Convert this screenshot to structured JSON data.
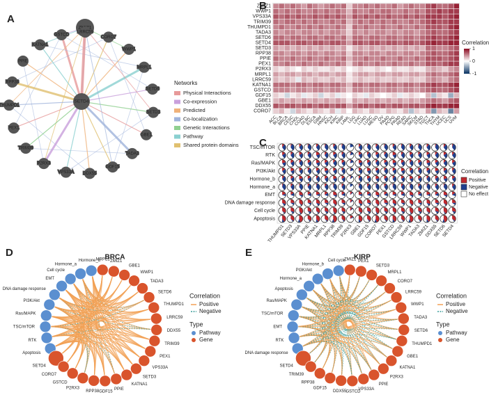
{
  "panel_a": {
    "label": "A",
    "hub_nodes": [
      "ZMIZ1",
      "SETD4"
    ],
    "nodes": [
      "GSTCD",
      "LRRC59",
      "CORO7",
      "WWP1",
      "MRPL1",
      "SETD6",
      "SETD3",
      "GBE1",
      "TADA3",
      "GDF15",
      "DDX55",
      "VPS33A",
      "P2RX3",
      "TRIM39",
      "PEX1",
      "THUMPD1",
      "RPP38",
      "PPIE",
      "KATNA1"
    ],
    "legend_title": "Networks",
    "legend": [
      {
        "label": "Physical Interactions",
        "color": "#e79a9a"
      },
      {
        "label": "Co-expression",
        "color": "#c9a0dc"
      },
      {
        "label": "Predicted",
        "color": "#f0b27a"
      },
      {
        "label": "Co-localization",
        "color": "#a0b4dc"
      },
      {
        "label": "Genetic Interactions",
        "color": "#90d090"
      },
      {
        "label": "Pathway",
        "color": "#8ad0d0"
      },
      {
        "label": "Shared protein domains",
        "color": "#e0c070"
      }
    ]
  },
  "panel_b": {
    "label": "B",
    "rows": [
      "ZMIZ1",
      "WWP1",
      "VPS33A",
      "TRIM39",
      "THUMPD1",
      "TADA3",
      "SETD6",
      "SETD4",
      "SETD3",
      "RPP38",
      "PPIE",
      "PEX1",
      "P2RX3",
      "MRPL1",
      "LRRC59",
      "KATNA1",
      "GSTCD",
      "GDF15",
      "GBE1",
      "DDX55",
      "CORO7"
    ],
    "columns": [
      "ACC",
      "BLCA",
      "BRCA",
      "CESC",
      "CHOL",
      "COAD",
      "DLBC",
      "ESCA",
      "GBM",
      "HNSC",
      "KICH",
      "KIRC",
      "KIRP",
      "LAML",
      "LGG",
      "LIHC",
      "LUAD",
      "LUSC",
      "MESO",
      "OV",
      "PAAD",
      "PCPG",
      "PRAD",
      "READ",
      "SARC",
      "SKCM",
      "STAD",
      "TGCT",
      "THCA",
      "THYM",
      "UCEC",
      "UCS",
      "UVM"
    ],
    "values": [
      [
        0.5,
        0.6,
        0.5,
        0.6,
        0.5,
        0.4,
        0.6,
        0.5,
        0.4,
        0.5,
        0.6,
        0.5,
        0.6,
        0.2,
        0.5,
        0.5,
        0.6,
        0.5,
        0.6,
        0.5,
        0.5,
        0.6,
        0.4,
        0.5,
        0.6,
        0.5,
        0.5,
        0.7,
        0.8,
        0.6,
        0.6,
        0.7,
        0.9
      ],
      [
        0.6,
        0.5,
        0.6,
        0.5,
        0.6,
        0.5,
        0.5,
        0.6,
        0.5,
        0.6,
        0.5,
        0.6,
        0.5,
        0.3,
        0.6,
        0.5,
        0.5,
        0.6,
        0.5,
        0.6,
        0.6,
        0.5,
        0.5,
        0.6,
        0.5,
        0.6,
        0.5,
        0.7,
        0.7,
        0.8,
        0.7,
        0.8,
        0.8
      ],
      [
        0.7,
        0.6,
        0.7,
        0.6,
        0.7,
        0.6,
        0.6,
        0.7,
        0.6,
        0.7,
        0.6,
        0.7,
        0.6,
        0.4,
        0.7,
        0.6,
        0.7,
        0.6,
        0.7,
        0.6,
        0.7,
        0.6,
        0.6,
        0.7,
        0.6,
        0.7,
        0.6,
        0.8,
        0.8,
        0.8,
        0.7,
        0.8,
        0.9
      ],
      [
        0.6,
        0.5,
        0.6,
        0.6,
        0.5,
        0.6,
        0.5,
        0.6,
        0.5,
        0.5,
        0.6,
        0.5,
        0.6,
        0.3,
        0.5,
        0.6,
        0.5,
        0.6,
        0.5,
        0.6,
        0.5,
        0.6,
        0.5,
        0.5,
        0.6,
        0.5,
        0.6,
        0.7,
        0.8,
        0.7,
        0.7,
        0.8,
        0.8
      ],
      [
        0.5,
        0.6,
        0.5,
        0.5,
        0.6,
        0.5,
        0.6,
        0.5,
        0.6,
        0.5,
        0.5,
        0.6,
        0.5,
        0.2,
        0.6,
        0.5,
        0.6,
        0.5,
        0.5,
        0.6,
        0.5,
        0.5,
        0.6,
        0.5,
        0.5,
        0.6,
        0.5,
        0.7,
        0.7,
        0.7,
        0.6,
        0.8,
        0.9
      ],
      [
        0.5,
        0.4,
        0.5,
        0.5,
        0.4,
        0.5,
        0.5,
        0.4,
        0.5,
        0.4,
        0.5,
        0.5,
        0.4,
        0.2,
        0.5,
        0.4,
        0.5,
        0.4,
        0.5,
        0.5,
        0.4,
        0.5,
        0.4,
        0.5,
        0.5,
        0.4,
        0.5,
        0.6,
        0.7,
        0.6,
        0.6,
        0.7,
        0.8
      ],
      [
        0.6,
        0.6,
        0.5,
        0.6,
        0.6,
        0.5,
        0.6,
        0.6,
        0.5,
        0.6,
        0.6,
        0.5,
        0.6,
        0.3,
        0.6,
        0.6,
        0.5,
        0.6,
        0.6,
        0.5,
        0.6,
        0.6,
        0.5,
        0.6,
        0.6,
        0.5,
        0.6,
        0.7,
        0.8,
        0.7,
        0.7,
        0.8,
        0.9
      ],
      [
        0.7,
        0.7,
        0.7,
        0.6,
        0.7,
        0.7,
        0.6,
        0.7,
        0.7,
        0.6,
        0.7,
        0.7,
        0.6,
        0.4,
        0.7,
        0.7,
        0.6,
        0.7,
        0.7,
        0.6,
        0.7,
        0.7,
        0.6,
        0.7,
        0.7,
        0.6,
        0.7,
        0.8,
        0.9,
        0.8,
        0.8,
        0.9,
        0.9
      ],
      [
        0.4,
        0.3,
        0.4,
        0.3,
        0.4,
        0.3,
        0.4,
        0.3,
        0.4,
        0.3,
        0.4,
        0.3,
        0.4,
        0.1,
        0.3,
        0.4,
        0.3,
        0.4,
        0.3,
        0.4,
        0.3,
        0.4,
        0.3,
        0.4,
        0.3,
        0.4,
        0.3,
        0.6,
        0.6,
        0.5,
        0.5,
        0.6,
        0.7
      ],
      [
        0.5,
        0.5,
        0.4,
        0.5,
        0.5,
        0.4,
        0.5,
        0.5,
        0.4,
        0.5,
        0.5,
        0.4,
        0.5,
        0.2,
        0.5,
        0.5,
        0.4,
        0.5,
        0.5,
        0.4,
        0.5,
        0.5,
        0.4,
        0.5,
        0.5,
        0.4,
        0.5,
        0.6,
        0.7,
        0.6,
        0.6,
        0.7,
        0.8
      ],
      [
        0.6,
        0.5,
        0.5,
        0.6,
        0.5,
        0.5,
        0.6,
        0.5,
        0.5,
        0.6,
        0.5,
        0.5,
        0.6,
        0.3,
        0.5,
        0.5,
        0.6,
        0.5,
        0.5,
        0.6,
        0.5,
        0.5,
        0.6,
        0.5,
        0.5,
        0.6,
        0.5,
        0.7,
        0.7,
        0.7,
        0.6,
        0.7,
        0.8
      ],
      [
        0.5,
        0.5,
        0.6,
        0.5,
        0.5,
        0.6,
        0.5,
        0.5,
        0.6,
        0.5,
        0.5,
        0.6,
        0.5,
        0.2,
        0.5,
        0.6,
        0.5,
        0.5,
        0.6,
        0.5,
        0.5,
        0.6,
        0.5,
        0.5,
        0.6,
        0.5,
        0.5,
        0.7,
        0.7,
        0.6,
        0.7,
        0.8,
        0.8
      ],
      [
        0.2,
        0.1,
        0.2,
        0.1,
        0.0,
        0.2,
        0.1,
        0.2,
        0.1,
        0.1,
        0.2,
        0.1,
        0.2,
        0.0,
        0.1,
        0.2,
        0.1,
        0.1,
        0.2,
        0.1,
        0.0,
        0.2,
        0.1,
        0.1,
        0.2,
        0.1,
        0.1,
        0.3,
        0.4,
        0.3,
        0.2,
        0.4,
        0.5
      ],
      [
        0.4,
        0.3,
        0.4,
        0.4,
        0.3,
        0.4,
        0.4,
        0.3,
        0.4,
        0.4,
        0.3,
        0.4,
        0.4,
        0.1,
        0.3,
        0.4,
        0.4,
        0.3,
        0.4,
        0.4,
        0.3,
        0.4,
        0.4,
        0.3,
        0.4,
        0.4,
        0.3,
        0.5,
        0.6,
        0.5,
        0.5,
        0.6,
        0.7
      ],
      [
        0.3,
        0.2,
        0.3,
        0.2,
        -0.1,
        0.3,
        0.2,
        0.3,
        0.2,
        0.2,
        0.3,
        0.2,
        0.3,
        0.1,
        0.2,
        0.3,
        0.2,
        0.2,
        0.3,
        0.2,
        0.2,
        0.3,
        0.2,
        0.2,
        0.3,
        0.2,
        0.2,
        0.4,
        0.5,
        0.4,
        0.3,
        0.5,
        0.6
      ],
      [
        0.6,
        0.6,
        0.6,
        0.5,
        0.6,
        0.6,
        0.5,
        0.6,
        0.6,
        0.5,
        0.6,
        0.6,
        0.5,
        0.3,
        0.6,
        0.6,
        0.5,
        0.6,
        0.6,
        0.5,
        0.6,
        0.6,
        0.5,
        0.6,
        0.6,
        0.5,
        0.6,
        0.7,
        0.8,
        0.7,
        0.7,
        0.8,
        0.9
      ],
      [
        0.5,
        0.5,
        0.5,
        0.4,
        0.5,
        0.5,
        0.4,
        0.5,
        0.5,
        0.4,
        0.5,
        0.5,
        0.4,
        0.2,
        0.5,
        0.5,
        0.4,
        0.5,
        0.5,
        0.4,
        0.5,
        0.5,
        0.4,
        0.5,
        0.5,
        0.4,
        0.5,
        0.6,
        0.7,
        0.6,
        0.6,
        0.7,
        0.8
      ],
      [
        0.2,
        0.1,
        -0.2,
        0.1,
        0.2,
        -0.1,
        0.1,
        0.2,
        -0.2,
        0.1,
        0.2,
        -0.1,
        0.1,
        0.0,
        0.2,
        0.1,
        -0.1,
        0.2,
        0.1,
        0.0,
        0.1,
        0.2,
        -0.1,
        0.1,
        0.2,
        0.1,
        0.0,
        0.3,
        -0.3,
        0.2,
        0.1,
        -0.4,
        0.3
      ],
      [
        0.3,
        0.4,
        0.3,
        0.4,
        0.3,
        0.4,
        0.3,
        0.4,
        0.3,
        0.4,
        0.3,
        0.4,
        0.3,
        0.1,
        0.4,
        0.3,
        0.4,
        0.3,
        0.4,
        0.3,
        0.4,
        0.3,
        0.4,
        0.3,
        0.4,
        0.3,
        0.4,
        0.5,
        0.6,
        0.5,
        0.4,
        0.6,
        0.7
      ],
      [
        0.7,
        0.6,
        0.7,
        0.7,
        0.6,
        0.7,
        0.7,
        0.6,
        0.7,
        0.7,
        0.6,
        0.7,
        0.7,
        0.4,
        0.6,
        0.7,
        0.7,
        0.6,
        0.7,
        0.7,
        0.6,
        0.7,
        0.7,
        0.6,
        0.7,
        0.7,
        0.6,
        0.8,
        0.9,
        0.8,
        0.8,
        0.9,
        0.9
      ],
      [
        0.2,
        0.3,
        0.1,
        -0.2,
        0.3,
        0.2,
        0.1,
        0.3,
        0.2,
        0.1,
        0.3,
        -0.1,
        0.2,
        0.0,
        0.3,
        0.2,
        0.1,
        0.3,
        0.2,
        0.1,
        0.3,
        0.2,
        0.1,
        0.3,
        -0.3,
        0.2,
        0.1,
        0.4,
        -0.5,
        0.3,
        0.2,
        -0.6,
        0.4
      ]
    ],
    "colorbar_title": "Correlation",
    "colorbar_ticks": [
      1,
      0,
      -1
    ],
    "colors": [
      "#053061",
      "#ffffff",
      "#8b0a20"
    ]
  },
  "panel_c": {
    "label": "C",
    "rows": [
      "TSC/mTOR",
      "RTK",
      "Ras/MAPK",
      "PI3K/Akt",
      "Hormone_b",
      "Hormone_a",
      "EMT",
      "DNA damage response",
      "Cell cycle",
      "Apoptosis"
    ],
    "columns": [
      "THUMPD1",
      "SETD3",
      "VPS33A",
      "PPIE",
      "KATNA1",
      "MRPL1",
      "RPP38",
      "TRIM39",
      "P2RX3",
      "GBE1",
      "GDF15",
      "CORO7",
      "PEX1",
      "GSTCD",
      "LRRC59",
      "WWP1",
      "TADA3",
      "ZMIZ1",
      "DDX55",
      "SETD6",
      "SETD4"
    ],
    "positive": [
      [
        10,
        5,
        10,
        5,
        10,
        5,
        10,
        5,
        0,
        10,
        5,
        10,
        5,
        10,
        5,
        10,
        5,
        10,
        5,
        10,
        5
      ],
      [
        15,
        10,
        15,
        10,
        20,
        10,
        15,
        10,
        5,
        15,
        10,
        15,
        10,
        20,
        10,
        15,
        10,
        15,
        10,
        15,
        10
      ],
      [
        20,
        15,
        10,
        15,
        20,
        15,
        10,
        15,
        5,
        20,
        15,
        10,
        15,
        20,
        15,
        10,
        15,
        20,
        15,
        10,
        15
      ],
      [
        15,
        20,
        15,
        10,
        15,
        20,
        15,
        10,
        5,
        15,
        20,
        15,
        10,
        15,
        20,
        15,
        10,
        15,
        20,
        15,
        10
      ],
      [
        10,
        15,
        20,
        15,
        10,
        15,
        20,
        15,
        5,
        10,
        15,
        20,
        15,
        10,
        15,
        20,
        15,
        10,
        15,
        20,
        15
      ],
      [
        5,
        10,
        5,
        10,
        5,
        10,
        5,
        10,
        0,
        5,
        10,
        5,
        10,
        5,
        10,
        5,
        10,
        5,
        10,
        5,
        10
      ],
      [
        20,
        15,
        25,
        15,
        20,
        15,
        25,
        15,
        10,
        20,
        15,
        25,
        15,
        20,
        15,
        25,
        15,
        20,
        15,
        25,
        15
      ],
      [
        30,
        25,
        35,
        25,
        30,
        25,
        35,
        25,
        10,
        30,
        25,
        35,
        25,
        30,
        25,
        35,
        25,
        30,
        25,
        35,
        25
      ],
      [
        35,
        30,
        40,
        30,
        35,
        30,
        40,
        30,
        10,
        35,
        30,
        40,
        30,
        35,
        30,
        40,
        30,
        35,
        30,
        40,
        30
      ],
      [
        40,
        35,
        45,
        35,
        40,
        35,
        45,
        35,
        15,
        40,
        35,
        45,
        35,
        40,
        35,
        45,
        35,
        40,
        35,
        45,
        35
      ]
    ],
    "negative": [
      [
        30,
        35,
        30,
        35,
        30,
        35,
        30,
        35,
        20,
        30,
        35,
        30,
        35,
        30,
        35,
        30,
        35,
        30,
        35,
        30,
        35
      ],
      [
        25,
        30,
        25,
        30,
        20,
        30,
        25,
        30,
        15,
        25,
        30,
        25,
        30,
        20,
        30,
        25,
        30,
        25,
        30,
        25,
        30
      ],
      [
        20,
        25,
        30,
        25,
        20,
        25,
        30,
        25,
        15,
        20,
        25,
        30,
        25,
        20,
        25,
        30,
        25,
        20,
        25,
        30,
        25
      ],
      [
        25,
        20,
        25,
        30,
        25,
        20,
        25,
        30,
        15,
        25,
        20,
        25,
        30,
        25,
        20,
        25,
        30,
        25,
        20,
        25,
        30
      ],
      [
        30,
        25,
        20,
        25,
        30,
        25,
        20,
        25,
        10,
        30,
        25,
        20,
        25,
        30,
        25,
        20,
        25,
        30,
        25,
        20,
        25
      ],
      [
        35,
        30,
        35,
        30,
        35,
        30,
        35,
        30,
        15,
        35,
        30,
        35,
        30,
        35,
        30,
        35,
        30,
        35,
        30,
        35,
        30
      ],
      [
        10,
        15,
        10,
        15,
        10,
        15,
        10,
        15,
        5,
        10,
        15,
        10,
        15,
        10,
        15,
        10,
        15,
        10,
        15,
        10,
        15
      ],
      [
        10,
        10,
        5,
        10,
        10,
        10,
        5,
        10,
        5,
        10,
        10,
        5,
        10,
        10,
        10,
        5,
        10,
        10,
        10,
        5,
        10
      ],
      [
        5,
        10,
        5,
        10,
        5,
        10,
        5,
        10,
        5,
        5,
        10,
        5,
        10,
        5,
        10,
        5,
        10,
        5,
        10,
        5,
        10
      ],
      [
        10,
        5,
        10,
        5,
        10,
        5,
        10,
        5,
        5,
        10,
        5,
        10,
        5,
        10,
        5,
        10,
        5,
        10,
        5,
        10,
        5
      ]
    ],
    "legend_title": "Correlation",
    "legend": [
      {
        "label": "Positive",
        "color": "#c0282d"
      },
      {
        "label": "Negative",
        "color": "#1f3f8f"
      },
      {
        "label": "No effect",
        "color": "#ffffff"
      }
    ]
  },
  "panel_d": {
    "label": "D",
    "title": "BRCA",
    "pathways": [
      "Hormone_b",
      "Hormone_a",
      "Cell cycle",
      "EMT",
      "DNA damage response",
      "PI3K/Akt",
      "Ras/MAPK",
      "TSC/mTOR",
      "RTK",
      "Apoptosis"
    ],
    "genes": [
      "SETD4",
      "CORO7",
      "GSTCD",
      "P2RX3",
      "RPP38",
      "GDF15",
      "PPIE",
      "KATNA1",
      "SETD3",
      "VPS33A",
      "PEX1",
      "TRIM39",
      "DDX55",
      "LRRC59",
      "THUMPD1",
      "SETD6",
      "TADA3",
      "WWP1",
      "GBE1",
      "ZMIZ1",
      "MRPL1"
    ],
    "correlation_title": "Correlation",
    "correlation": [
      {
        "label": "Positive",
        "color": "#f2a054"
      },
      {
        "label": "Negative",
        "color": "#3a9e9a"
      }
    ],
    "type_title": "Type",
    "type": [
      {
        "label": "Pathway",
        "color": "#5b8fd0"
      },
      {
        "label": "Gene",
        "color": "#d9542c"
      }
    ]
  },
  "panel_e": {
    "label": "E",
    "title": "KIRP",
    "pathways": [
      "Cell cycle",
      "Hormone_b",
      "PI3K/Akt",
      "Hormone_a",
      "Apoptosis",
      "Ras/MAPK",
      "TSC/mTOR",
      "EMT",
      "RTK",
      "DNA damage response"
    ],
    "genes": [
      "SETD4",
      "TRIM39",
      "RPP38",
      "GDF15",
      "DDX55",
      "GSTCD",
      "VPS33A",
      "PPIE",
      "P2RX3",
      "KATNA1",
      "GBE1",
      "THUMPD1",
      "SETD6",
      "TADA3",
      "WWP1",
      "LRRC59",
      "CORO7",
      "MRPL1",
      "SETD3",
      "PEX1",
      "ZMIZ1"
    ],
    "correlation_title": "Correlation",
    "correlation": [
      {
        "label": "Positive",
        "color": "#f2a054"
      },
      {
        "label": "Negative",
        "color": "#3a9e9a"
      }
    ],
    "type_title": "Type",
    "type": [
      {
        "label": "Pathway",
        "color": "#5b8fd0"
      },
      {
        "label": "Gene",
        "color": "#d9542c"
      }
    ]
  }
}
